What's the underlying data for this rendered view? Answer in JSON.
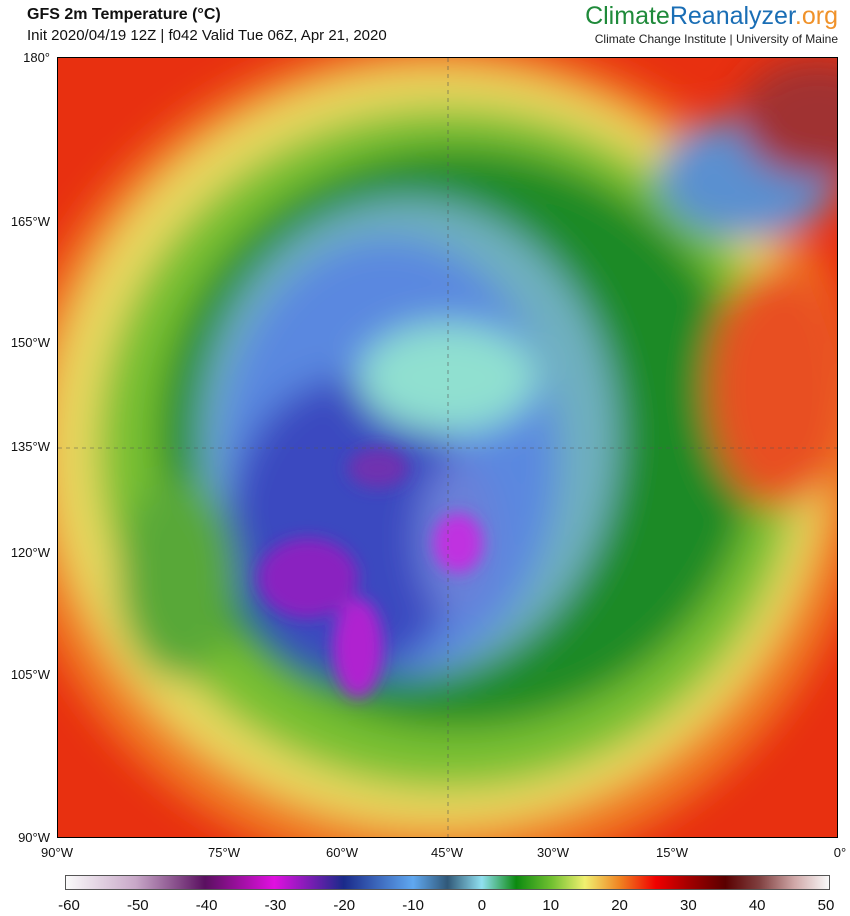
{
  "header": {
    "title": "GFS 2m Temperature (°C)",
    "subtitle": "Init 2020/04/19 12Z | f042 Valid Tue 06Z, Apr 21, 2020",
    "brand": {
      "part1": "Climate",
      "part2": "Reanalyzer",
      "part3": ".org"
    },
    "institution": "Climate Change Institute | University of Maine"
  },
  "map": {
    "left_axis_labels": [
      "180°",
      "165°W",
      "150°W",
      "135°W",
      "120°W",
      "105°W",
      "90°W"
    ],
    "bottom_axis_labels": [
      "90°W",
      "75°W",
      "60°W",
      "45°W",
      "30°W",
      "15°W",
      "0°"
    ]
  },
  "colorbar": {
    "labels": [
      "-60",
      "-50",
      "-40",
      "-30",
      "-20",
      "-10",
      "0",
      "10",
      "20",
      "30",
      "40",
      "50"
    ],
    "range": [
      -60,
      50
    ],
    "unit": "°C"
  }
}
